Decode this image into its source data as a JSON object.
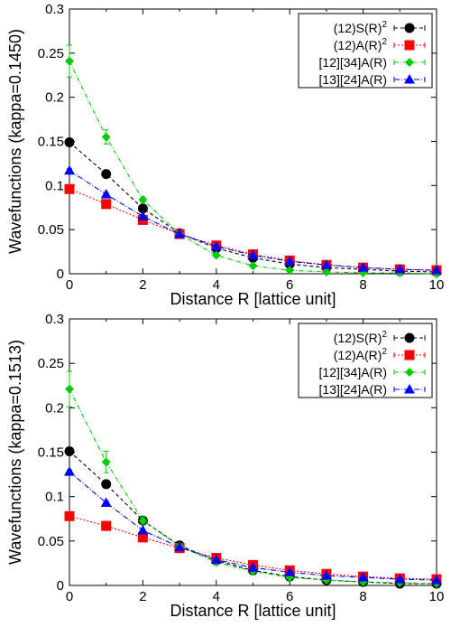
{
  "chart_data": [
    {
      "type": "line",
      "xlabel": "Distance R [lattice unit]",
      "ylabel": "Wavefunctions (kappa=0.1450)",
      "xlim": [
        0,
        10
      ],
      "ylim": [
        0,
        0.3
      ],
      "xticks": [
        "0",
        "2",
        "4",
        "6",
        "8",
        "10"
      ],
      "yticks": [
        "0",
        "0.05",
        "0.1",
        "0.15",
        "0.2",
        "0.25",
        "0.3"
      ],
      "legend_position": "top-right",
      "grid": false,
      "x": [
        0,
        1,
        2,
        3,
        4,
        5,
        6,
        7,
        8,
        9,
        10
      ],
      "series": [
        {
          "name": "(12)S(R)",
          "superscript": "2",
          "color": "#000000",
          "marker": "circle",
          "dash": "4,3",
          "values": [
            0.149,
            0.113,
            0.074,
            0.046,
            0.029,
            0.018,
            0.011,
            0.007,
            0.005,
            0.003,
            0.002
          ],
          "errors": [
            0.002,
            0.002,
            0.002,
            0.001,
            0.001,
            0.001,
            0.001,
            0,
            0,
            0,
            0
          ]
        },
        {
          "name": "(12)A(R)",
          "superscript": "2",
          "color": "#ff0000",
          "marker": "square",
          "dash": "2,2",
          "values": [
            0.096,
            0.079,
            0.061,
            0.045,
            0.032,
            0.022,
            0.015,
            0.01,
            0.007,
            0.005,
            0.004
          ],
          "errors": [
            0.002,
            0.002,
            0.001,
            0.001,
            0.001,
            0,
            0,
            0,
            0,
            0,
            0
          ]
        },
        {
          "name": "[12][34]A(R)",
          "superscript": "",
          "color": "#00cc00",
          "marker": "diamond",
          "dash": "5,2,1,2",
          "values": [
            0.241,
            0.155,
            0.084,
            0.045,
            0.021,
            0.009,
            0.004,
            0.002,
            0.001,
            0.001,
            0.0
          ],
          "errors": [
            0.018,
            0.008,
            0.003,
            0.002,
            0.001,
            0.001,
            0,
            0,
            0,
            0,
            0
          ]
        },
        {
          "name": "[13][24]A(R)",
          "superscript": "",
          "color": "#0000ff",
          "marker": "triangle",
          "dash": "6,2,1,2",
          "values": [
            0.117,
            0.09,
            0.065,
            0.045,
            0.031,
            0.021,
            0.014,
            0.01,
            0.007,
            0.005,
            0.004
          ],
          "errors": [
            0.002,
            0.002,
            0.001,
            0.001,
            0.001,
            0,
            0,
            0,
            0,
            0,
            0
          ]
        }
      ]
    },
    {
      "type": "line",
      "xlabel": "Distance R [lattice unit]",
      "ylabel": "Wavefunctions (kappa=0.1513)",
      "xlim": [
        0,
        10
      ],
      "ylim": [
        0,
        0.3
      ],
      "xticks": [
        "0",
        "2",
        "4",
        "6",
        "8",
        "10"
      ],
      "yticks": [
        "0",
        "0.05",
        "0.1",
        "0.15",
        "0.2",
        "0.25",
        "0.3"
      ],
      "legend_position": "top-right",
      "grid": false,
      "x": [
        0,
        1,
        2,
        3,
        4,
        5,
        6,
        7,
        8,
        9,
        10
      ],
      "series": [
        {
          "name": "(12)S(R)",
          "superscript": "2",
          "color": "#000000",
          "marker": "circle",
          "dash": "4,3",
          "values": [
            0.151,
            0.114,
            0.073,
            0.045,
            0.028,
            0.017,
            0.01,
            0.006,
            0.004,
            0.002,
            0.002
          ],
          "errors": [
            0.002,
            0.003,
            0.002,
            0.001,
            0.001,
            0.001,
            0,
            0,
            0,
            0,
            0
          ]
        },
        {
          "name": "(12)A(R)",
          "superscript": "2",
          "color": "#ff0000",
          "marker": "square",
          "dash": "2,2",
          "values": [
            0.078,
            0.067,
            0.054,
            0.042,
            0.031,
            0.023,
            0.017,
            0.013,
            0.01,
            0.008,
            0.007
          ],
          "errors": [
            0.002,
            0.005,
            0.002,
            0.001,
            0.001,
            0,
            0,
            0,
            0,
            0,
            0
          ]
        },
        {
          "name": "[12][34]A(R)",
          "superscript": "",
          "color": "#00cc00",
          "marker": "diamond",
          "dash": "5,2,1,2",
          "values": [
            0.221,
            0.139,
            0.073,
            0.044,
            0.026,
            0.016,
            0.009,
            0.006,
            0.004,
            0.003,
            0.002
          ],
          "errors": [
            0.02,
            0.012,
            0.004,
            0.002,
            0.001,
            0.001,
            0.001,
            0,
            0,
            0,
            0
          ]
        },
        {
          "name": "[13][24]A(R)",
          "superscript": "",
          "color": "#0000ff",
          "marker": "triangle",
          "dash": "6,2,1,2",
          "values": [
            0.128,
            0.093,
            0.062,
            0.043,
            0.029,
            0.02,
            0.015,
            0.011,
            0.009,
            0.007,
            0.006
          ],
          "errors": [
            0.002,
            0.002,
            0.001,
            0.001,
            0.001,
            0,
            0,
            0,
            0,
            0,
            0
          ]
        }
      ]
    }
  ]
}
